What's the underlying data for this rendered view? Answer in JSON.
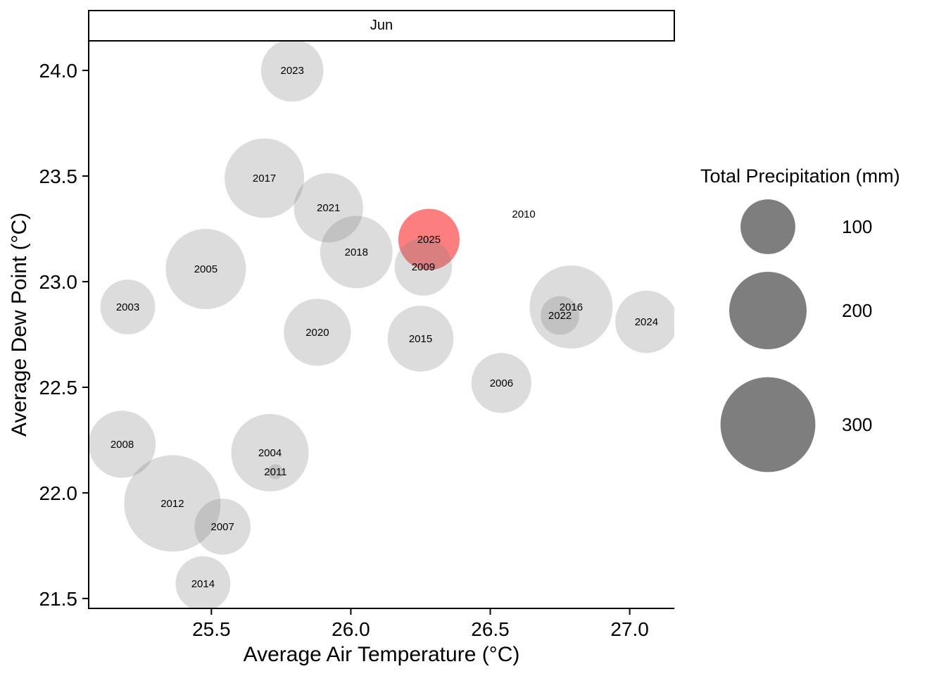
{
  "chart_data": {
    "type": "scatter",
    "facet_label": "Jun",
    "xlabel": "Average Air Temperature (°C)",
    "ylabel": "Average Dew Point (°C)",
    "x_ticks": [
      25.5,
      26.0,
      26.5,
      27.0
    ],
    "x_tick_labels": [
      "25.5",
      "26.0",
      "26.5",
      "27.0"
    ],
    "y_ticks": [
      24.0,
      23.5,
      23.0,
      22.5,
      22.0,
      21.5
    ],
    "y_tick_labels": [
      "24.0",
      "23.5",
      "23.0",
      "22.5",
      "22.0",
      "21.5"
    ],
    "xlim": [
      25.06,
      27.16
    ],
    "ylim": [
      21.453,
      24.14
    ],
    "grid": false,
    "legend": {
      "title": "Total Precipitation (mm)",
      "values": [
        100,
        200,
        300
      ],
      "labels": [
        "100",
        "200",
        "300"
      ],
      "position": "right"
    },
    "size_scale": {
      "domain": [
        1,
        310
      ],
      "radius_range_px": [
        3,
        68.5
      ]
    },
    "points": [
      {
        "year": "2003",
        "x": 25.2,
        "y": 22.88,
        "precip_mm": 100,
        "highlight": false
      },
      {
        "year": "2004",
        "x": 25.71,
        "y": 22.19,
        "precip_mm": 200,
        "highlight": false
      },
      {
        "year": "2005",
        "x": 25.48,
        "y": 23.06,
        "precip_mm": 215,
        "highlight": false
      },
      {
        "year": "2006",
        "x": 26.54,
        "y": 22.52,
        "precip_mm": 120,
        "highlight": false
      },
      {
        "year": "2007",
        "x": 25.54,
        "y": 21.84,
        "precip_mm": 105,
        "highlight": false
      },
      {
        "year": "2008",
        "x": 25.18,
        "y": 22.23,
        "precip_mm": 150,
        "highlight": false
      },
      {
        "year": "2009",
        "x": 26.26,
        "y": 23.07,
        "precip_mm": 110,
        "highlight": false
      },
      {
        "year": "2010",
        "x": 26.62,
        "y": 23.32,
        "precip_mm": 1,
        "highlight": false
      },
      {
        "year": "2011",
        "x": 25.73,
        "y": 22.1,
        "precip_mm": 8,
        "highlight": false
      },
      {
        "year": "2012",
        "x": 25.36,
        "y": 21.95,
        "precip_mm": 310,
        "highlight": false
      },
      {
        "year": "2014",
        "x": 25.47,
        "y": 21.57,
        "precip_mm": 100,
        "highlight": false
      },
      {
        "year": "2015",
        "x": 26.25,
        "y": 22.73,
        "precip_mm": 145,
        "highlight": false
      },
      {
        "year": "2016",
        "x": 26.79,
        "y": 22.88,
        "precip_mm": 230,
        "highlight": false
      },
      {
        "year": "2017",
        "x": 25.69,
        "y": 23.49,
        "precip_mm": 210,
        "highlight": false
      },
      {
        "year": "2018",
        "x": 26.02,
        "y": 23.14,
        "precip_mm": 175,
        "highlight": false
      },
      {
        "year": "2020",
        "x": 25.88,
        "y": 22.76,
        "precip_mm": 150,
        "highlight": false
      },
      {
        "year": "2021",
        "x": 25.92,
        "y": 23.35,
        "precip_mm": 160,
        "highlight": false
      },
      {
        "year": "2022",
        "x": 26.75,
        "y": 22.84,
        "precip_mm": 50,
        "highlight": false
      },
      {
        "year": "2023",
        "x": 25.79,
        "y": 24.0,
        "precip_mm": 130,
        "highlight": false
      },
      {
        "year": "2024",
        "x": 27.06,
        "y": 22.81,
        "precip_mm": 130,
        "highlight": false
      },
      {
        "year": "2025",
        "x": 26.28,
        "y": 23.2,
        "precip_mm": 125,
        "highlight": true
      }
    ]
  },
  "colors": {
    "bubble_fill": "rgba(130,130,130,0.28)",
    "highlight_fill": "rgba(250,25,25,0.56)",
    "legend_circle_fill": "#7E7E7E",
    "axis": "#000000",
    "text": "#000000",
    "strip_bg": "#FFFFFF",
    "strip_border": "#000000"
  }
}
